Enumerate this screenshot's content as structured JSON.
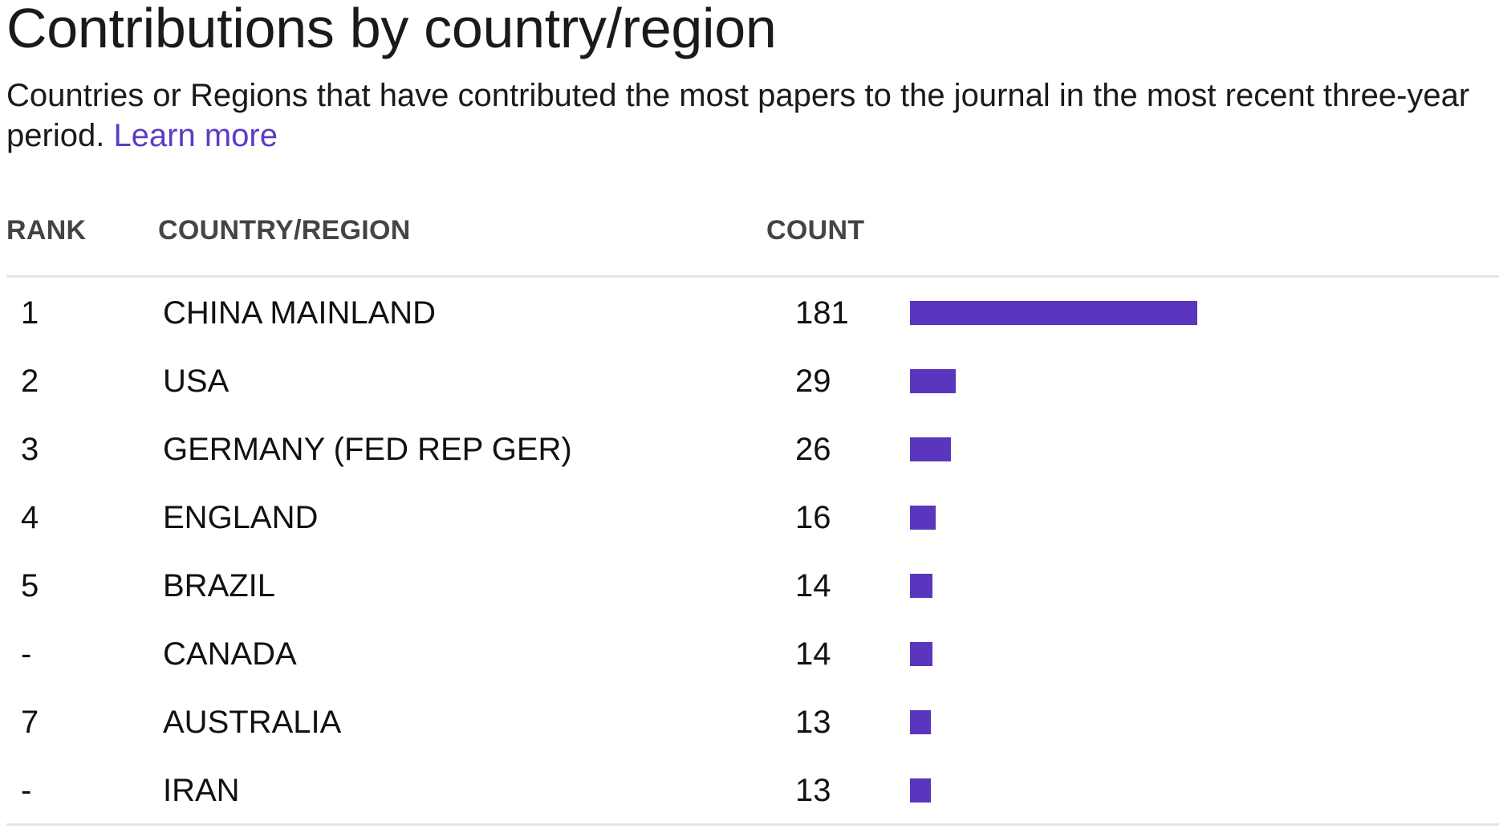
{
  "title": "Contributions by country/region",
  "subtitle": "Countries or Regions that have contributed the most papers to the journal in the most recent three-year period.",
  "learn_more_label": "Learn more",
  "columns": {
    "rank": "RANK",
    "country": "COUNTRY/REGION",
    "count": "COUNT"
  },
  "colors": {
    "bar": "#5a35bd",
    "link": "#5b3cc4"
  },
  "chart_data": {
    "type": "bar",
    "orientation": "horizontal",
    "categories": [
      "CHINA MAINLAND",
      "USA",
      "GERMANY (FED REP GER)",
      "ENGLAND",
      "BRAZIL",
      "CANADA",
      "AUSTRALIA",
      "IRAN"
    ],
    "ranks": [
      "1",
      "2",
      "3",
      "4",
      "5",
      "-",
      "7",
      "-"
    ],
    "values": [
      181,
      29,
      26,
      16,
      14,
      14,
      13,
      13
    ],
    "xlim": [
      0,
      181
    ]
  }
}
